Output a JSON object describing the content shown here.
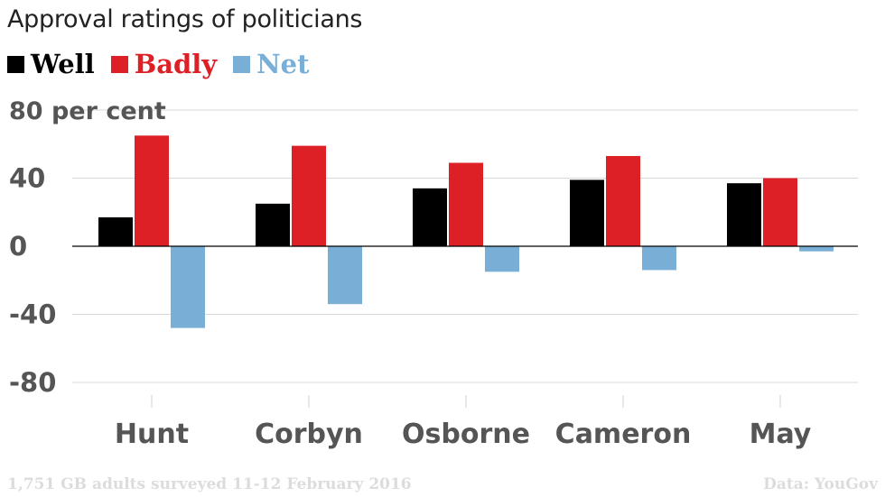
{
  "chart_data": {
    "type": "bar",
    "title": "Approval ratings of politicians",
    "categories": [
      "Hunt",
      "Corbyn",
      "Osborne",
      "Cameron",
      "May"
    ],
    "series": [
      {
        "name": "Well",
        "color": "#000000",
        "values": [
          17,
          25,
          34,
          39,
          37
        ]
      },
      {
        "name": "Badly",
        "color": "#dd1f26",
        "values": [
          65,
          59,
          49,
          53,
          40
        ]
      },
      {
        "name": "Net",
        "color": "#79afd6",
        "values": [
          -48,
          -34,
          -15,
          -14,
          -3
        ]
      }
    ],
    "yticks": [
      {
        "value": 80,
        "label": "80 per cent"
      },
      {
        "value": 40,
        "label": "40"
      },
      {
        "value": 0,
        "label": "0"
      },
      {
        "value": -40,
        "label": "-40"
      },
      {
        "value": -80,
        "label": "-80"
      }
    ],
    "ylim": [
      -80,
      80
    ],
    "grid": true,
    "legend_position": "top-left"
  },
  "footer": {
    "note": "1,751 GB adults surveyed 11-12 February 2016",
    "source": "Data: YouGov"
  }
}
